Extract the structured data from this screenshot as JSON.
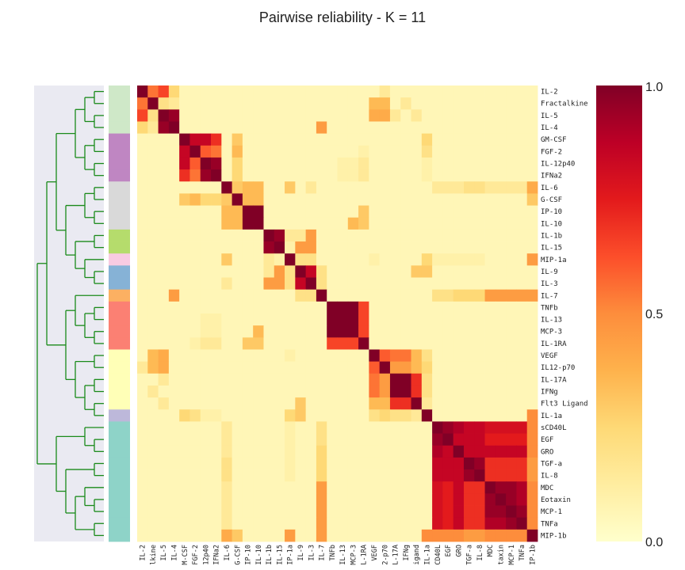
{
  "chart_data": {
    "type": "heatmap",
    "title": "Pairwise reliability - K = 11",
    "row_labels": [
      "IL-2",
      "Fractalkine",
      "IL-5",
      "IL-4",
      "GM-CSF",
      "FGF-2",
      "IL-12p40",
      "IFNa2",
      "IL-6",
      "G-CSF",
      "IP-10",
      "IL-10",
      "IL-1b",
      "IL-15",
      "MIP-1a",
      "IL-9",
      "IL-3",
      "IL-7",
      "TNFb",
      "IL-13",
      "MCP-3",
      "IL-1RA",
      "VEGF",
      "IL12-p70",
      "IL-17A",
      "IFNg",
      "Flt3 Ligand",
      "IL-1a",
      "sCD40L",
      "EGF",
      "GRO",
      "TGF-a",
      "IL-8",
      "MDC",
      "Eotaxin",
      "MCP-1",
      "TNFa",
      "MIP-1b"
    ],
    "col_labels": [
      "IL-2",
      "lkine",
      "IL-5",
      "IL-4",
      "M-CSF",
      "FGF-2",
      "12p40",
      "IFNa2",
      "IL-6",
      "G-CSF",
      "IP-10",
      "IL-10",
      "IL-1b",
      "IL-15",
      "IP-1a",
      "IL-9",
      "IL-3",
      "IL-7",
      "TNFb",
      "IL-13",
      "MCP-3",
      "L-1RA",
      "VEGF",
      "2-p70",
      "L-17A",
      "IFNg",
      "igand",
      "IL-1a",
      "CD40L",
      "EGF",
      "GRO",
      "TGF-a",
      "IL-8",
      "MDC",
      "taxin",
      "MCP-1",
      "TNFa",
      "IP-1b"
    ],
    "cluster_colors": [
      "#cfe8c8",
      "#cfe8c8",
      "#cfe8c8",
      "#cfe8c8",
      "#bf86c2",
      "#bf86c2",
      "#bf86c2",
      "#bf86c2",
      "#d9d9d9",
      "#d9d9d9",
      "#d9d9d9",
      "#d9d9d9",
      "#b5dc6c",
      "#b5dc6c",
      "#f8cbe2",
      "#86b2d6",
      "#86b2d6",
      "#fcb062",
      "#fb8073",
      "#fb8073",
      "#fb8073",
      "#fb8073",
      "#ffffb7",
      "#ffffb7",
      "#ffffb7",
      "#ffffb7",
      "#ffffb7",
      "#bdb8da",
      "#8ed3c8",
      "#8ed3c8",
      "#8ed3c8",
      "#8ed3c8",
      "#8ed3c8",
      "#8ed3c8",
      "#8ed3c8",
      "#8ed3c8",
      "#8ed3c8",
      "#8ed3c8"
    ],
    "colorbar": {
      "min": 0.0,
      "max": 1.0,
      "ticks": [
        "0.0",
        "0.5",
        "1.0"
      ],
      "colormap": "YlOrRd"
    },
    "blocks": [
      {
        "start": 0,
        "end": 3,
        "value": 0.6
      },
      {
        "start": 4,
        "end": 7,
        "value": 0.75
      },
      {
        "start": 8,
        "end": 11,
        "value": 0.35
      },
      {
        "start": 10,
        "end": 11,
        "value": 1.0
      },
      {
        "start": 12,
        "end": 13,
        "value": 0.9
      },
      {
        "start": 15,
        "end": 16,
        "value": 0.85
      },
      {
        "start": 18,
        "end": 20,
        "value": 1.0
      },
      {
        "start": 18,
        "end": 21,
        "value": 0.6
      },
      {
        "start": 22,
        "end": 26,
        "value": 0.55
      },
      {
        "start": 24,
        "end": 25,
        "value": 1.0
      },
      {
        "start": 28,
        "end": 37,
        "value": 0.9
      }
    ],
    "cells": [
      [
        0,
        1,
        0.55
      ],
      [
        0,
        2,
        0.65
      ],
      [
        0,
        3,
        0.25
      ],
      [
        1,
        2,
        0.2
      ],
      [
        2,
        3,
        0.95
      ],
      [
        1,
        3,
        0.15
      ],
      [
        4,
        5,
        0.85
      ],
      [
        4,
        6,
        0.85
      ],
      [
        4,
        7,
        0.7
      ],
      [
        5,
        6,
        0.6
      ],
      [
        5,
        7,
        0.55
      ],
      [
        6,
        7,
        0.95
      ],
      [
        8,
        9,
        0.3
      ],
      [
        8,
        10,
        0.35
      ],
      [
        8,
        11,
        0.35
      ],
      [
        9,
        10,
        0.35
      ],
      [
        9,
        11,
        0.35
      ],
      [
        12,
        13,
        0.95
      ],
      [
        12,
        14,
        0.15
      ],
      [
        12,
        15,
        0.15
      ],
      [
        12,
        16,
        0.45
      ],
      [
        13,
        14,
        0.1
      ],
      [
        13,
        15,
        0.45
      ],
      [
        13,
        16,
        0.45
      ],
      [
        14,
        15,
        0.2
      ],
      [
        14,
        16,
        0.2
      ],
      [
        15,
        16,
        0.85
      ],
      [
        15,
        17,
        0.2
      ],
      [
        16,
        17,
        0.2
      ],
      [
        18,
        21,
        0.65
      ],
      [
        19,
        21,
        0.65
      ],
      [
        20,
        21,
        0.65
      ],
      [
        22,
        23,
        0.6
      ],
      [
        22,
        24,
        0.55
      ],
      [
        22,
        25,
        0.55
      ],
      [
        22,
        26,
        0.35
      ],
      [
        23,
        24,
        0.45
      ],
      [
        23,
        25,
        0.45
      ],
      [
        23,
        26,
        0.35
      ],
      [
        24,
        26,
        0.7
      ],
      [
        25,
        26,
        0.7
      ],
      [
        22,
        27,
        0.2
      ],
      [
        23,
        27,
        0.25
      ],
      [
        24,
        27,
        0.2
      ],
      [
        25,
        27,
        0.2
      ],
      [
        26,
        27,
        0.15
      ],
      [
        28,
        29,
        0.95
      ],
      [
        28,
        30,
        0.9
      ],
      [
        28,
        31,
        0.85
      ],
      [
        28,
        32,
        0.85
      ],
      [
        28,
        33,
        0.8
      ],
      [
        28,
        34,
        0.8
      ],
      [
        28,
        35,
        0.8
      ],
      [
        28,
        36,
        0.8
      ],
      [
        28,
        37,
        0.5
      ],
      [
        29,
        30,
        0.85
      ],
      [
        29,
        31,
        0.85
      ],
      [
        29,
        32,
        0.85
      ],
      [
        29,
        33,
        0.75
      ],
      [
        29,
        34,
        0.75
      ],
      [
        29,
        35,
        0.75
      ],
      [
        29,
        36,
        0.75
      ],
      [
        29,
        37,
        0.5
      ],
      [
        30,
        31,
        0.85
      ],
      [
        30,
        32,
        0.85
      ],
      [
        30,
        33,
        0.85
      ],
      [
        30,
        34,
        0.85
      ],
      [
        30,
        35,
        0.85
      ],
      [
        30,
        36,
        0.85
      ],
      [
        30,
        37,
        0.5
      ],
      [
        31,
        32,
        0.95
      ],
      [
        31,
        33,
        0.7
      ],
      [
        31,
        34,
        0.7
      ],
      [
        31,
        35,
        0.7
      ],
      [
        31,
        36,
        0.7
      ],
      [
        31,
        37,
        0.45
      ],
      [
        32,
        33,
        0.7
      ],
      [
        32,
        34,
        0.7
      ],
      [
        32,
        35,
        0.7
      ],
      [
        32,
        36,
        0.7
      ],
      [
        32,
        37,
        0.45
      ],
      [
        33,
        34,
        0.95
      ],
      [
        33,
        35,
        0.95
      ],
      [
        33,
        36,
        0.9
      ],
      [
        33,
        37,
        0.5
      ],
      [
        34,
        35,
        0.95
      ],
      [
        34,
        36,
        0.9
      ],
      [
        34,
        37,
        0.5
      ],
      [
        35,
        36,
        0.95
      ],
      [
        35,
        37,
        0.5
      ],
      [
        36,
        37,
        0.55
      ],
      [
        14,
        37,
        0.5
      ],
      [
        17,
        28,
        0.25
      ],
      [
        17,
        29,
        0.25
      ],
      [
        17,
        30,
        0.3
      ],
      [
        17,
        31,
        0.2
      ],
      [
        17,
        32,
        0.2
      ],
      [
        17,
        33,
        0.45
      ],
      [
        17,
        34,
        0.45
      ],
      [
        17,
        35,
        0.45
      ],
      [
        17,
        36,
        0.45
      ],
      [
        1,
        22,
        0.35
      ],
      [
        1,
        23,
        0.35
      ],
      [
        1,
        25,
        0.15
      ],
      [
        3,
        17,
        0.45
      ],
      [
        2,
        23,
        0.45
      ],
      [
        2,
        24,
        0.3
      ],
      [
        10,
        21,
        0.3
      ],
      [
        11,
        21,
        0.3
      ],
      [
        10,
        11,
        1.0
      ],
      [
        14,
        27,
        0.25
      ],
      [
        15,
        27,
        0.3
      ],
      [
        17,
        37,
        0.1
      ],
      [
        8,
        37,
        0.4
      ],
      [
        8,
        16,
        0.15
      ],
      [
        8,
        14,
        0.3
      ],
      [
        9,
        37,
        0.3
      ],
      [
        14,
        22,
        0.1
      ],
      [
        21,
        11,
        0.3
      ],
      [
        20,
        11,
        0.35
      ],
      [
        21,
        10,
        0.3
      ],
      [
        26,
        15,
        0.3
      ],
      [
        26,
        2,
        0.15
      ],
      [
        22,
        2,
        0.4
      ],
      [
        23,
        2,
        0.4
      ],
      [
        24,
        2,
        0.15
      ],
      [
        23,
        0,
        0.15
      ],
      [
        28,
        8,
        0.15
      ],
      [
        29,
        8,
        0.15
      ],
      [
        30,
        8,
        0.15
      ],
      [
        31,
        8,
        0.15
      ],
      [
        32,
        8,
        0.15
      ],
      [
        33,
        8,
        0.1
      ],
      [
        34,
        8,
        0.1
      ],
      [
        35,
        8,
        0.1
      ],
      [
        36,
        8,
        0.1
      ],
      [
        33,
        17,
        0.45
      ],
      [
        34,
        17,
        0.45
      ],
      [
        35,
        17,
        0.45
      ],
      [
        36,
        17,
        0.45
      ],
      [
        32,
        17,
        0.25
      ],
      [
        31,
        17,
        0.25
      ],
      [
        30,
        17,
        0.25
      ],
      [
        29,
        17,
        0.2
      ],
      [
        28,
        17,
        0.2
      ],
      [
        37,
        14,
        0.45
      ],
      [
        37,
        17,
        0.45
      ],
      [
        37,
        27,
        0.5
      ],
      [
        37,
        28,
        0.5
      ],
      [
        37,
        29,
        0.5
      ],
      [
        37,
        30,
        0.5
      ],
      [
        37,
        31,
        0.45
      ],
      [
        37,
        32,
        0.45
      ],
      [
        37,
        33,
        0.5
      ],
      [
        37,
        34,
        0.5
      ],
      [
        37,
        35,
        0.5
      ],
      [
        37,
        36,
        0.5
      ],
      [
        8,
        28,
        0.15
      ],
      [
        8,
        29,
        0.15
      ],
      [
        8,
        30,
        0.15
      ],
      [
        8,
        31,
        0.2
      ],
      [
        8,
        32,
        0.2
      ],
      [
        8,
        33,
        0.15
      ],
      [
        8,
        34,
        0.15
      ],
      [
        8,
        35,
        0.15
      ],
      [
        8,
        36,
        0.15
      ],
      [
        14,
        28,
        0.1
      ],
      [
        14,
        29,
        0.1
      ],
      [
        14,
        30,
        0.1
      ],
      [
        14,
        31,
        0.1
      ],
      [
        14,
        32,
        0.1
      ],
      [
        4,
        27,
        0.3
      ],
      [
        5,
        27,
        0.2
      ],
      [
        6,
        27,
        0.1
      ],
      [
        7,
        27,
        0.1
      ],
      [
        4,
        9,
        0.25
      ],
      [
        5,
        9,
        0.3
      ],
      [
        6,
        9,
        0.25
      ],
      [
        7,
        9,
        0.2
      ],
      [
        9,
        4,
        0.3
      ],
      [
        9,
        5,
        0.35
      ],
      [
        9,
        6,
        0.25
      ],
      [
        9,
        7,
        0.25
      ],
      [
        9,
        8,
        0.3
      ],
      [
        7,
        21,
        0.15
      ],
      [
        6,
        21,
        0.15
      ],
      [
        6,
        20,
        0.1
      ],
      [
        7,
        20,
        0.1
      ],
      [
        6,
        19,
        0.1
      ],
      [
        7,
        19,
        0.1
      ],
      [
        21,
        7,
        0.15
      ],
      [
        21,
        6,
        0.15
      ],
      [
        21,
        5,
        0.1
      ],
      [
        27,
        4,
        0.25
      ],
      [
        27,
        5,
        0.2
      ],
      [
        27,
        6,
        0.1
      ]
    ]
  }
}
